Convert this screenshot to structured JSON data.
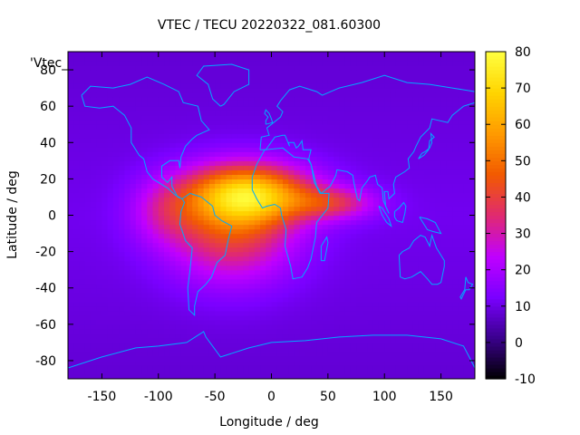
{
  "chart_data": {
    "type": "heatmap",
    "title": "VTEC / TECU 20220322_081.60300",
    "xlabel": "Longitude / deg",
    "ylabel": "Latitude / deg",
    "key_label": "'Vtec_",
    "xlim": [
      -180,
      180
    ],
    "ylim": [
      -90,
      90
    ],
    "xticks": [
      -150,
      -100,
      -50,
      0,
      50,
      100,
      150
    ],
    "yticks": [
      -80,
      -60,
      -40,
      -20,
      0,
      20,
      40,
      60,
      80
    ],
    "colorbar": {
      "range": [
        -10,
        80
      ],
      "ticks": [
        -10,
        0,
        10,
        20,
        30,
        40,
        50,
        60,
        70,
        80
      ],
      "palette": [
        "#000000",
        "#3a008c",
        "#7a00ff",
        "#c000ff",
        "#e02a70",
        "#f25a00",
        "#ff9a00",
        "#ffd400",
        "#ffff40"
      ]
    },
    "background_vtec": 11,
    "peaks": [
      {
        "lon": -20,
        "lat": 12,
        "vtec": 50,
        "sx": 55,
        "sy": 16
      },
      {
        "lon": -35,
        "lat": -8,
        "vtec": 30,
        "sx": 55,
        "sy": 28
      },
      {
        "lon": 55,
        "lat": 7,
        "vtec": 22,
        "sx": 38,
        "sy": 9
      },
      {
        "lon": -95,
        "lat": 2,
        "vtec": 12,
        "sx": 30,
        "sy": 18
      }
    ],
    "coastline_color": "#00aaff"
  }
}
